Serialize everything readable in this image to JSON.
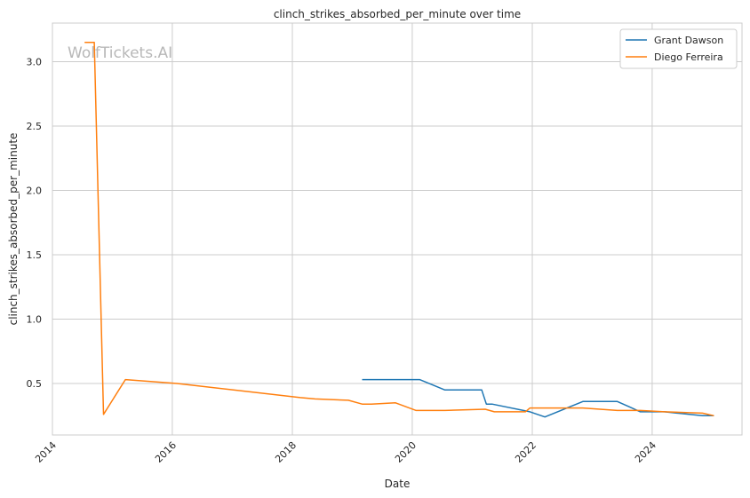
{
  "chart_data": {
    "type": "line",
    "title": "clinch_strikes_absorbed_per_minute over time",
    "xlabel": "Date",
    "ylabel": "clinch_strikes_absorbed_per_minute",
    "watermark": "WolfTickets.AI",
    "xlim": [
      "2014-01-01",
      "2025-07-01"
    ],
    "ylim": [
      0.1,
      3.3
    ],
    "x_ticks": [
      "2014",
      "2016",
      "2018",
      "2020",
      "2022",
      "2024"
    ],
    "y_ticks": [
      "0.5",
      "1.0",
      "1.5",
      "2.0",
      "2.5",
      "3.0"
    ],
    "grid": true,
    "legend_position": "top-right",
    "series": [
      {
        "name": "Grant Dawson",
        "color": "#1f77b4",
        "points": [
          [
            "2019-03-02",
            0.53
          ],
          [
            "2020-02-15",
            0.53
          ],
          [
            "2020-07-18",
            0.45
          ],
          [
            "2021-02-27",
            0.45
          ],
          [
            "2021-03-27",
            0.34
          ],
          [
            "2021-05-01",
            0.34
          ],
          [
            "2021-12-18",
            0.28
          ],
          [
            "2022-03-19",
            0.24
          ],
          [
            "2022-11-05",
            0.36
          ],
          [
            "2023-06-03",
            0.36
          ],
          [
            "2023-08-12",
            0.32
          ],
          [
            "2023-10-21",
            0.28
          ],
          [
            "2024-03-16",
            0.28
          ],
          [
            "2024-11-02",
            0.25
          ],
          [
            "2025-01-11",
            0.25
          ]
        ]
      },
      {
        "name": "Diego Ferreira",
        "color": "#ff7f0e",
        "points": [
          [
            "2014-07-16",
            3.15
          ],
          [
            "2014-09-13",
            3.15
          ],
          [
            "2014-11-08",
            0.26
          ],
          [
            "2015-03-21",
            0.53
          ],
          [
            "2016-01-30",
            0.5
          ],
          [
            "2018-02-18",
            0.39
          ],
          [
            "2018-05-19",
            0.38
          ],
          [
            "2018-12-08",
            0.37
          ],
          [
            "2019-03-02",
            0.34
          ],
          [
            "2019-04-27",
            0.34
          ],
          [
            "2019-09-21",
            0.35
          ],
          [
            "2020-01-25",
            0.29
          ],
          [
            "2020-07-18",
            0.29
          ],
          [
            "2021-03-20",
            0.3
          ],
          [
            "2021-05-15",
            0.28
          ],
          [
            "2021-11-20",
            0.28
          ],
          [
            "2021-12-18",
            0.31
          ],
          [
            "2022-11-05",
            0.31
          ],
          [
            "2023-06-03",
            0.29
          ],
          [
            "2023-10-21",
            0.29
          ],
          [
            "2024-03-16",
            0.28
          ],
          [
            "2024-11-02",
            0.27
          ],
          [
            "2025-01-11",
            0.25
          ]
        ]
      }
    ]
  }
}
